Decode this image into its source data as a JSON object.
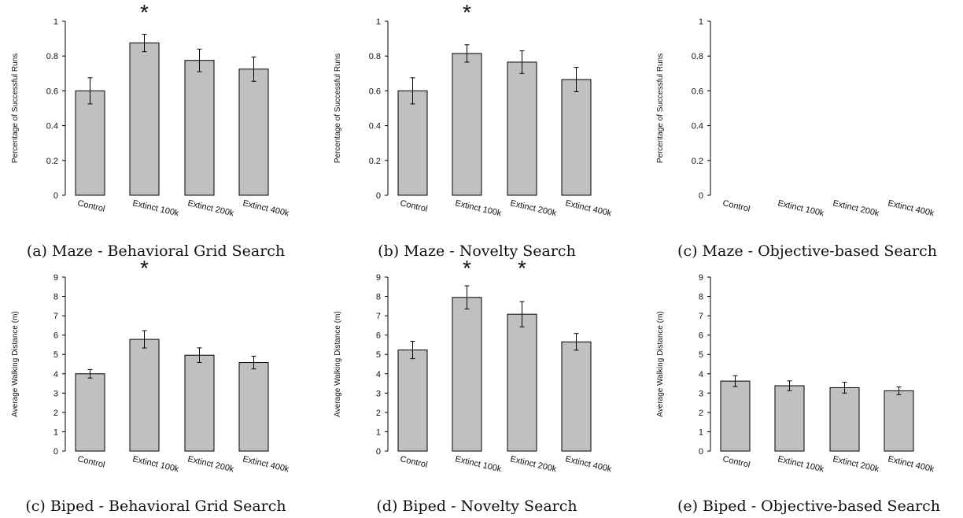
{
  "chart_data": [
    {
      "type": "bar",
      "caption": "(a) Maze - Behavioral Grid Search",
      "ylabel": "Percentage of Successful Runs",
      "ylim": [
        0,
        1
      ],
      "yticks": [
        "0",
        "0.2",
        "0.4",
        "0.6",
        "0.8",
        "1"
      ],
      "categories": [
        "Control",
        "Extinct 100k",
        "Extinct 200k",
        "Extinct 400k"
      ],
      "values": [
        0.6,
        0.875,
        0.775,
        0.725
      ],
      "error": [
        0.075,
        0.05,
        0.065,
        0.07
      ],
      "significant": [
        false,
        true,
        false,
        false
      ],
      "marker": "*"
    },
    {
      "type": "bar",
      "caption": "(b) Maze - Novelty Search",
      "ylabel": "Percentage of Successful Runs",
      "ylim": [
        0,
        1
      ],
      "yticks": [
        "0",
        "0.2",
        "0.4",
        "0.6",
        "0.8",
        "1"
      ],
      "categories": [
        "Control",
        "Extinct 100k",
        "Extinct 200k",
        "Extinct 400k"
      ],
      "values": [
        0.6,
        0.815,
        0.765,
        0.665
      ],
      "error": [
        0.075,
        0.05,
        0.065,
        0.07
      ],
      "significant": [
        false,
        true,
        false,
        false
      ],
      "marker": "*"
    },
    {
      "type": "bar",
      "caption": "(c) Maze - Objective-based Search",
      "ylabel": "Percentage of Successful Runs",
      "ylim": [
        0,
        1
      ],
      "yticks": [
        "0",
        "0.2",
        "0.4",
        "0.6",
        "0.8",
        "1"
      ],
      "categories": [
        "Control",
        "Extinct 100k",
        "Extinct 200k",
        "Extinct 400k"
      ],
      "values": [
        0,
        0,
        0,
        0
      ],
      "error": [
        0,
        0,
        0,
        0
      ],
      "significant": [
        false,
        false,
        false,
        false
      ],
      "marker": "*"
    },
    {
      "type": "bar",
      "caption": "(c) Biped - Behavioral Grid Search",
      "ylabel": "Average Walking Distance (m)",
      "ylim": [
        0,
        9
      ],
      "yticks": [
        "0",
        "1",
        "2",
        "3",
        "4",
        "5",
        "6",
        "7",
        "8",
        "9"
      ],
      "categories": [
        "Control",
        "Extinct 100k",
        "Extinct 200k",
        "Extinct 400k"
      ],
      "values": [
        4.0,
        5.78,
        4.96,
        4.58
      ],
      "error": [
        0.22,
        0.45,
        0.38,
        0.33
      ],
      "significant": [
        false,
        true,
        false,
        false
      ],
      "marker": "*"
    },
    {
      "type": "bar",
      "caption": "(d) Biped - Novelty Search",
      "ylabel": "Average Walking Distance (m)",
      "ylim": [
        0,
        9
      ],
      "yticks": [
        "0",
        "1",
        "2",
        "3",
        "4",
        "5",
        "6",
        "7",
        "8",
        "9"
      ],
      "categories": [
        "Control",
        "Extinct 100k",
        "Extinct 200k",
        "Extinct 400k"
      ],
      "values": [
        5.23,
        7.95,
        7.08,
        5.65
      ],
      "error": [
        0.45,
        0.6,
        0.65,
        0.43
      ],
      "significant": [
        false,
        true,
        true,
        false
      ],
      "marker": "*"
    },
    {
      "type": "bar",
      "caption": "(e) Biped - Objective-based Search",
      "ylabel": "Average Walking Distance (m)",
      "ylim": [
        0,
        9
      ],
      "yticks": [
        "0",
        "1",
        "2",
        "3",
        "4",
        "5",
        "6",
        "7",
        "8",
        "9"
      ],
      "categories": [
        "Control",
        "Extinct 100k",
        "Extinct 200k",
        "Extinct 400k"
      ],
      "values": [
        3.62,
        3.38,
        3.28,
        3.12
      ],
      "error": [
        0.28,
        0.25,
        0.28,
        0.2
      ],
      "significant": [
        false,
        false,
        false,
        false
      ],
      "marker": "*"
    }
  ]
}
